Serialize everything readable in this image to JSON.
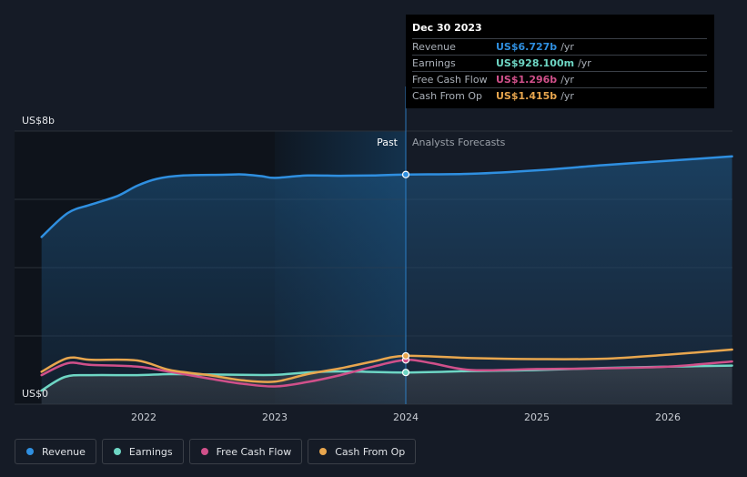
{
  "chart_data": {
    "type": "line",
    "y_axis": {
      "top_label": "US$8b",
      "bottom_label": "US$0",
      "ylim": [
        0,
        8
      ]
    },
    "x_ticks": [
      "2022",
      "2023",
      "2024",
      "2025",
      "2026"
    ],
    "periods": {
      "past_label": "Past",
      "forecast_label": "Analysts Forecasts"
    },
    "series": [
      {
        "name": "Revenue",
        "color": "#2f8fe0",
        "points": [
          [
            2021.22,
            4.9
          ],
          [
            2021.42,
            5.6
          ],
          [
            2021.6,
            5.85
          ],
          [
            2021.8,
            6.1
          ],
          [
            2021.95,
            6.4
          ],
          [
            2022.1,
            6.6
          ],
          [
            2022.3,
            6.7
          ],
          [
            2022.6,
            6.72
          ],
          [
            2022.75,
            6.73
          ],
          [
            2022.9,
            6.68
          ],
          [
            2023.0,
            6.63
          ],
          [
            2023.25,
            6.7
          ],
          [
            2023.5,
            6.69
          ],
          [
            2023.75,
            6.7
          ],
          [
            2024.0,
            6.727
          ],
          [
            2024.5,
            6.75
          ],
          [
            2025.0,
            6.85
          ],
          [
            2025.5,
            7.0
          ],
          [
            2026.0,
            7.13
          ],
          [
            2026.49,
            7.26
          ]
        ]
      },
      {
        "name": "Earnings",
        "color": "#6ed6c4",
        "points": [
          [
            2021.22,
            0.4
          ],
          [
            2021.4,
            0.8
          ],
          [
            2021.6,
            0.85
          ],
          [
            2021.95,
            0.85
          ],
          [
            2022.2,
            0.88
          ],
          [
            2022.5,
            0.87
          ],
          [
            2022.75,
            0.86
          ],
          [
            2023.0,
            0.86
          ],
          [
            2023.25,
            0.93
          ],
          [
            2023.5,
            0.96
          ],
          [
            2024.0,
            0.928
          ],
          [
            2024.5,
            0.97
          ],
          [
            2025.0,
            1.0
          ],
          [
            2025.5,
            1.06
          ],
          [
            2026.0,
            1.1
          ],
          [
            2026.49,
            1.13
          ]
        ]
      },
      {
        "name": "Free Cash Flow",
        "color": "#d0508a",
        "points": [
          [
            2021.22,
            0.85
          ],
          [
            2021.42,
            1.2
          ],
          [
            2021.6,
            1.15
          ],
          [
            2021.95,
            1.1
          ],
          [
            2022.2,
            0.95
          ],
          [
            2022.5,
            0.75
          ],
          [
            2022.75,
            0.6
          ],
          [
            2023.0,
            0.52
          ],
          [
            2023.25,
            0.65
          ],
          [
            2023.5,
            0.85
          ],
          [
            2023.75,
            1.1
          ],
          [
            2024.0,
            1.296
          ],
          [
            2024.2,
            1.2
          ],
          [
            2024.5,
            1.0
          ],
          [
            2025.0,
            1.03
          ],
          [
            2025.5,
            1.05
          ],
          [
            2026.0,
            1.1
          ],
          [
            2026.49,
            1.25
          ]
        ]
      },
      {
        "name": "Cash From Op",
        "color": "#e8a64e",
        "points": [
          [
            2021.22,
            0.95
          ],
          [
            2021.42,
            1.35
          ],
          [
            2021.6,
            1.3
          ],
          [
            2021.95,
            1.28
          ],
          [
            2022.2,
            1.0
          ],
          [
            2022.5,
            0.85
          ],
          [
            2022.75,
            0.7
          ],
          [
            2023.0,
            0.66
          ],
          [
            2023.25,
            0.88
          ],
          [
            2023.5,
            1.05
          ],
          [
            2023.75,
            1.25
          ],
          [
            2024.0,
            1.415
          ],
          [
            2024.5,
            1.35
          ],
          [
            2025.0,
            1.32
          ],
          [
            2025.5,
            1.33
          ],
          [
            2026.0,
            1.45
          ],
          [
            2026.49,
            1.6
          ]
        ]
      }
    ]
  },
  "tooltip": {
    "date": "Dec 30 2023",
    "rows": [
      {
        "label": "Revenue",
        "value": "US$6.727b",
        "unit": "/yr",
        "color": "#2f8fe0"
      },
      {
        "label": "Earnings",
        "value": "US$928.100m",
        "unit": "/yr",
        "color": "#6ed6c4"
      },
      {
        "label": "Free Cash Flow",
        "value": "US$1.296b",
        "unit": "/yr",
        "color": "#d0508a"
      },
      {
        "label": "Cash From Op",
        "value": "US$1.415b",
        "unit": "/yr",
        "color": "#e8a64e"
      }
    ]
  },
  "legend": [
    {
      "label": "Revenue",
      "color": "#2f8fe0"
    },
    {
      "label": "Earnings",
      "color": "#6ed6c4"
    },
    {
      "label": "Free Cash Flow",
      "color": "#d0508a"
    },
    {
      "label": "Cash From Op",
      "color": "#e8a64e"
    }
  ]
}
